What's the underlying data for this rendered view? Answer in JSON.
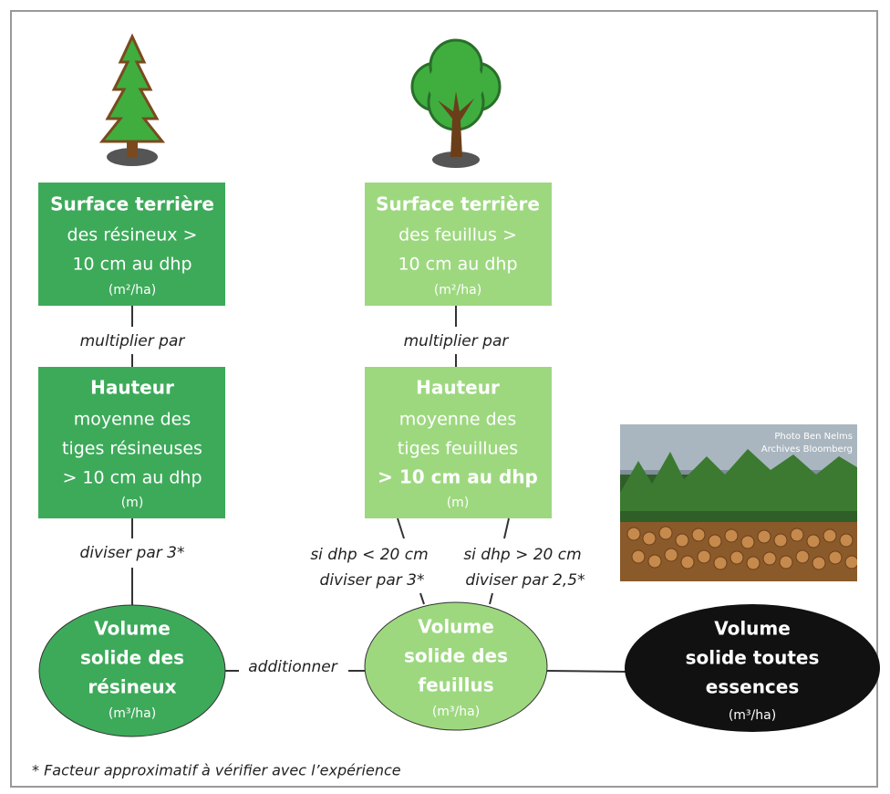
{
  "nodes": [
    {
      "lines": [
        "Surface terrière",
        "des résineux >",
        "10 cm au dhp",
        "(m²/ha)"
      ]
    },
    {
      "lines": [
        "Surface terrière",
        "des feuillus >",
        "10 cm au dhp",
        "(m²/ha)"
      ]
    },
    {
      "lines": [
        "Hauteur",
        "moyenne des",
        "tiges résineuses",
        "> 10 cm au dhp",
        "(m)"
      ]
    },
    {
      "lines": [
        "Hauteur",
        "moyenne des",
        "tiges feuillues",
        "> 10 cm au dhp",
        "(m)"
      ]
    },
    {
      "lines": [
        "Volume",
        "solide des",
        "résineux",
        "(m³/ha)"
      ]
    },
    {
      "lines": [
        "Volume",
        "solide des",
        "feuillus",
        "(m³/ha)"
      ]
    },
    {
      "lines": [
        "Volume",
        "solide toutes",
        "essences",
        "(m³/ha)"
      ]
    }
  ],
  "edges": [
    {
      "label": [
        "multiplier par"
      ]
    },
    {
      "label": [
        "multiplier par"
      ]
    },
    {
      "label": [
        "diviser par 3*"
      ]
    },
    {
      "label": [
        "si dhp < 20 cm",
        "diviser par 3*"
      ]
    },
    {
      "label": [
        "si dhp > 20 cm",
        "diviser par 2,5*"
      ]
    },
    {
      "label": [
        "additionner"
      ]
    }
  ],
  "photo_credit": [
    "Photo Ben Nelms",
    "Archives Bloomberg"
  ],
  "footnote": "* Facteur approximatif à vérifier avec l’expérience"
}
